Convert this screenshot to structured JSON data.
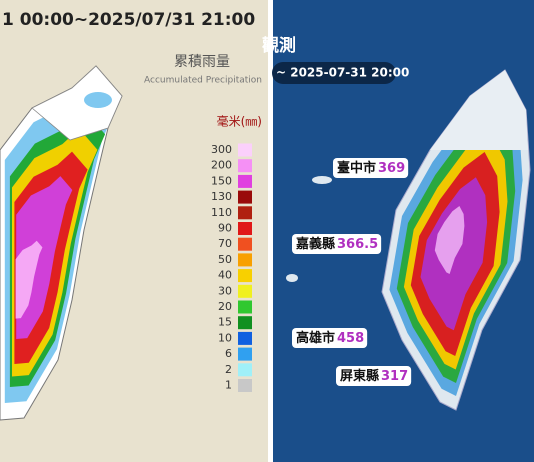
{
  "left": {
    "title": "1 00:00~2025/07/31 21:00",
    "legend_title": "累積雨量",
    "legend_subtitle": "Accumulated Precipitation",
    "unit": "毫米(㎜)",
    "legend": [
      {
        "label": "300",
        "color": "#fbd0fb"
      },
      {
        "label": "200",
        "color": "#f590f5"
      },
      {
        "label": "150",
        "color": "#e040e0"
      },
      {
        "label": "130",
        "color": "#9a0a0a"
      },
      {
        "label": "110",
        "color": "#b02010"
      },
      {
        "label": "90",
        "color": "#e01818"
      },
      {
        "label": "70",
        "color": "#f05020"
      },
      {
        "label": "50",
        "color": "#f8a000"
      },
      {
        "label": "40",
        "color": "#f8d000"
      },
      {
        "label": "30",
        "color": "#f0f020"
      },
      {
        "label": "20",
        "color": "#30c830"
      },
      {
        "label": "15",
        "color": "#109020"
      },
      {
        "label": "10",
        "color": "#1060e0"
      },
      {
        "label": "6",
        "color": "#30a0f0"
      },
      {
        "label": "2",
        "color": "#a0f0f8"
      },
      {
        "label": "1",
        "color": "#c8c8c8"
      }
    ]
  },
  "right": {
    "title": "觀測",
    "time": "~ 2025-07-31 20:00",
    "labels": [
      {
        "name": "臺中市",
        "value": "369"
      },
      {
        "name": "嘉義縣",
        "value": "366.5"
      },
      {
        "name": "高雄市",
        "value": "458"
      },
      {
        "name": "屏東縣",
        "value": "317"
      }
    ]
  }
}
